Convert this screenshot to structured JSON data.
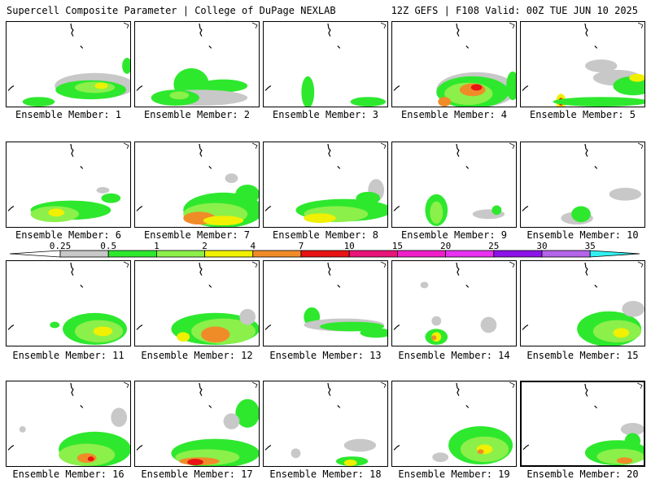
{
  "header": {
    "left": "Supercell Composite Parameter | College of DuPage NEXLAB",
    "right": "12Z GEFS | F108 Valid: 00Z TUE JUN 10 2025"
  },
  "legend": {
    "levels": [
      "0.25",
      "0.5",
      "1",
      "2",
      "4",
      "7",
      "10",
      "15",
      "20",
      "25",
      "30",
      "35"
    ],
    "colors": [
      "#c8c8c8",
      "#2ee82e",
      "#8cf04a",
      "#f0f000",
      "#f08c28",
      "#e81414",
      "#e8147a",
      "#f01ec8",
      "#e832f0",
      "#8c14e8",
      "#b464e8",
      "#32f0f0"
    ]
  },
  "members": [
    {
      "label": "Ensemble Member: 1"
    },
    {
      "label": "Ensemble Member: 2"
    },
    {
      "label": "Ensemble Member: 3"
    },
    {
      "label": "Ensemble Member: 4"
    },
    {
      "label": "Ensemble Member: 5"
    },
    {
      "label": "Ensemble Member: 6"
    },
    {
      "label": "Ensemble Member: 7"
    },
    {
      "label": "Ensemble Member: 8"
    },
    {
      "label": "Ensemble Member: 9"
    },
    {
      "label": "Ensemble Member: 10"
    },
    {
      "label": "Ensemble Member: 11"
    },
    {
      "label": "Ensemble Member: 12"
    },
    {
      "label": "Ensemble Member: 13"
    },
    {
      "label": "Ensemble Member: 14"
    },
    {
      "label": "Ensemble Member: 15"
    },
    {
      "label": "Ensemble Member: 16"
    },
    {
      "label": "Ensemble Member: 17"
    },
    {
      "label": "Ensemble Member: 18"
    },
    {
      "label": "Ensemble Member: 19"
    },
    {
      "label": "Ensemble Member: 20",
      "selected": true
    }
  ]
}
